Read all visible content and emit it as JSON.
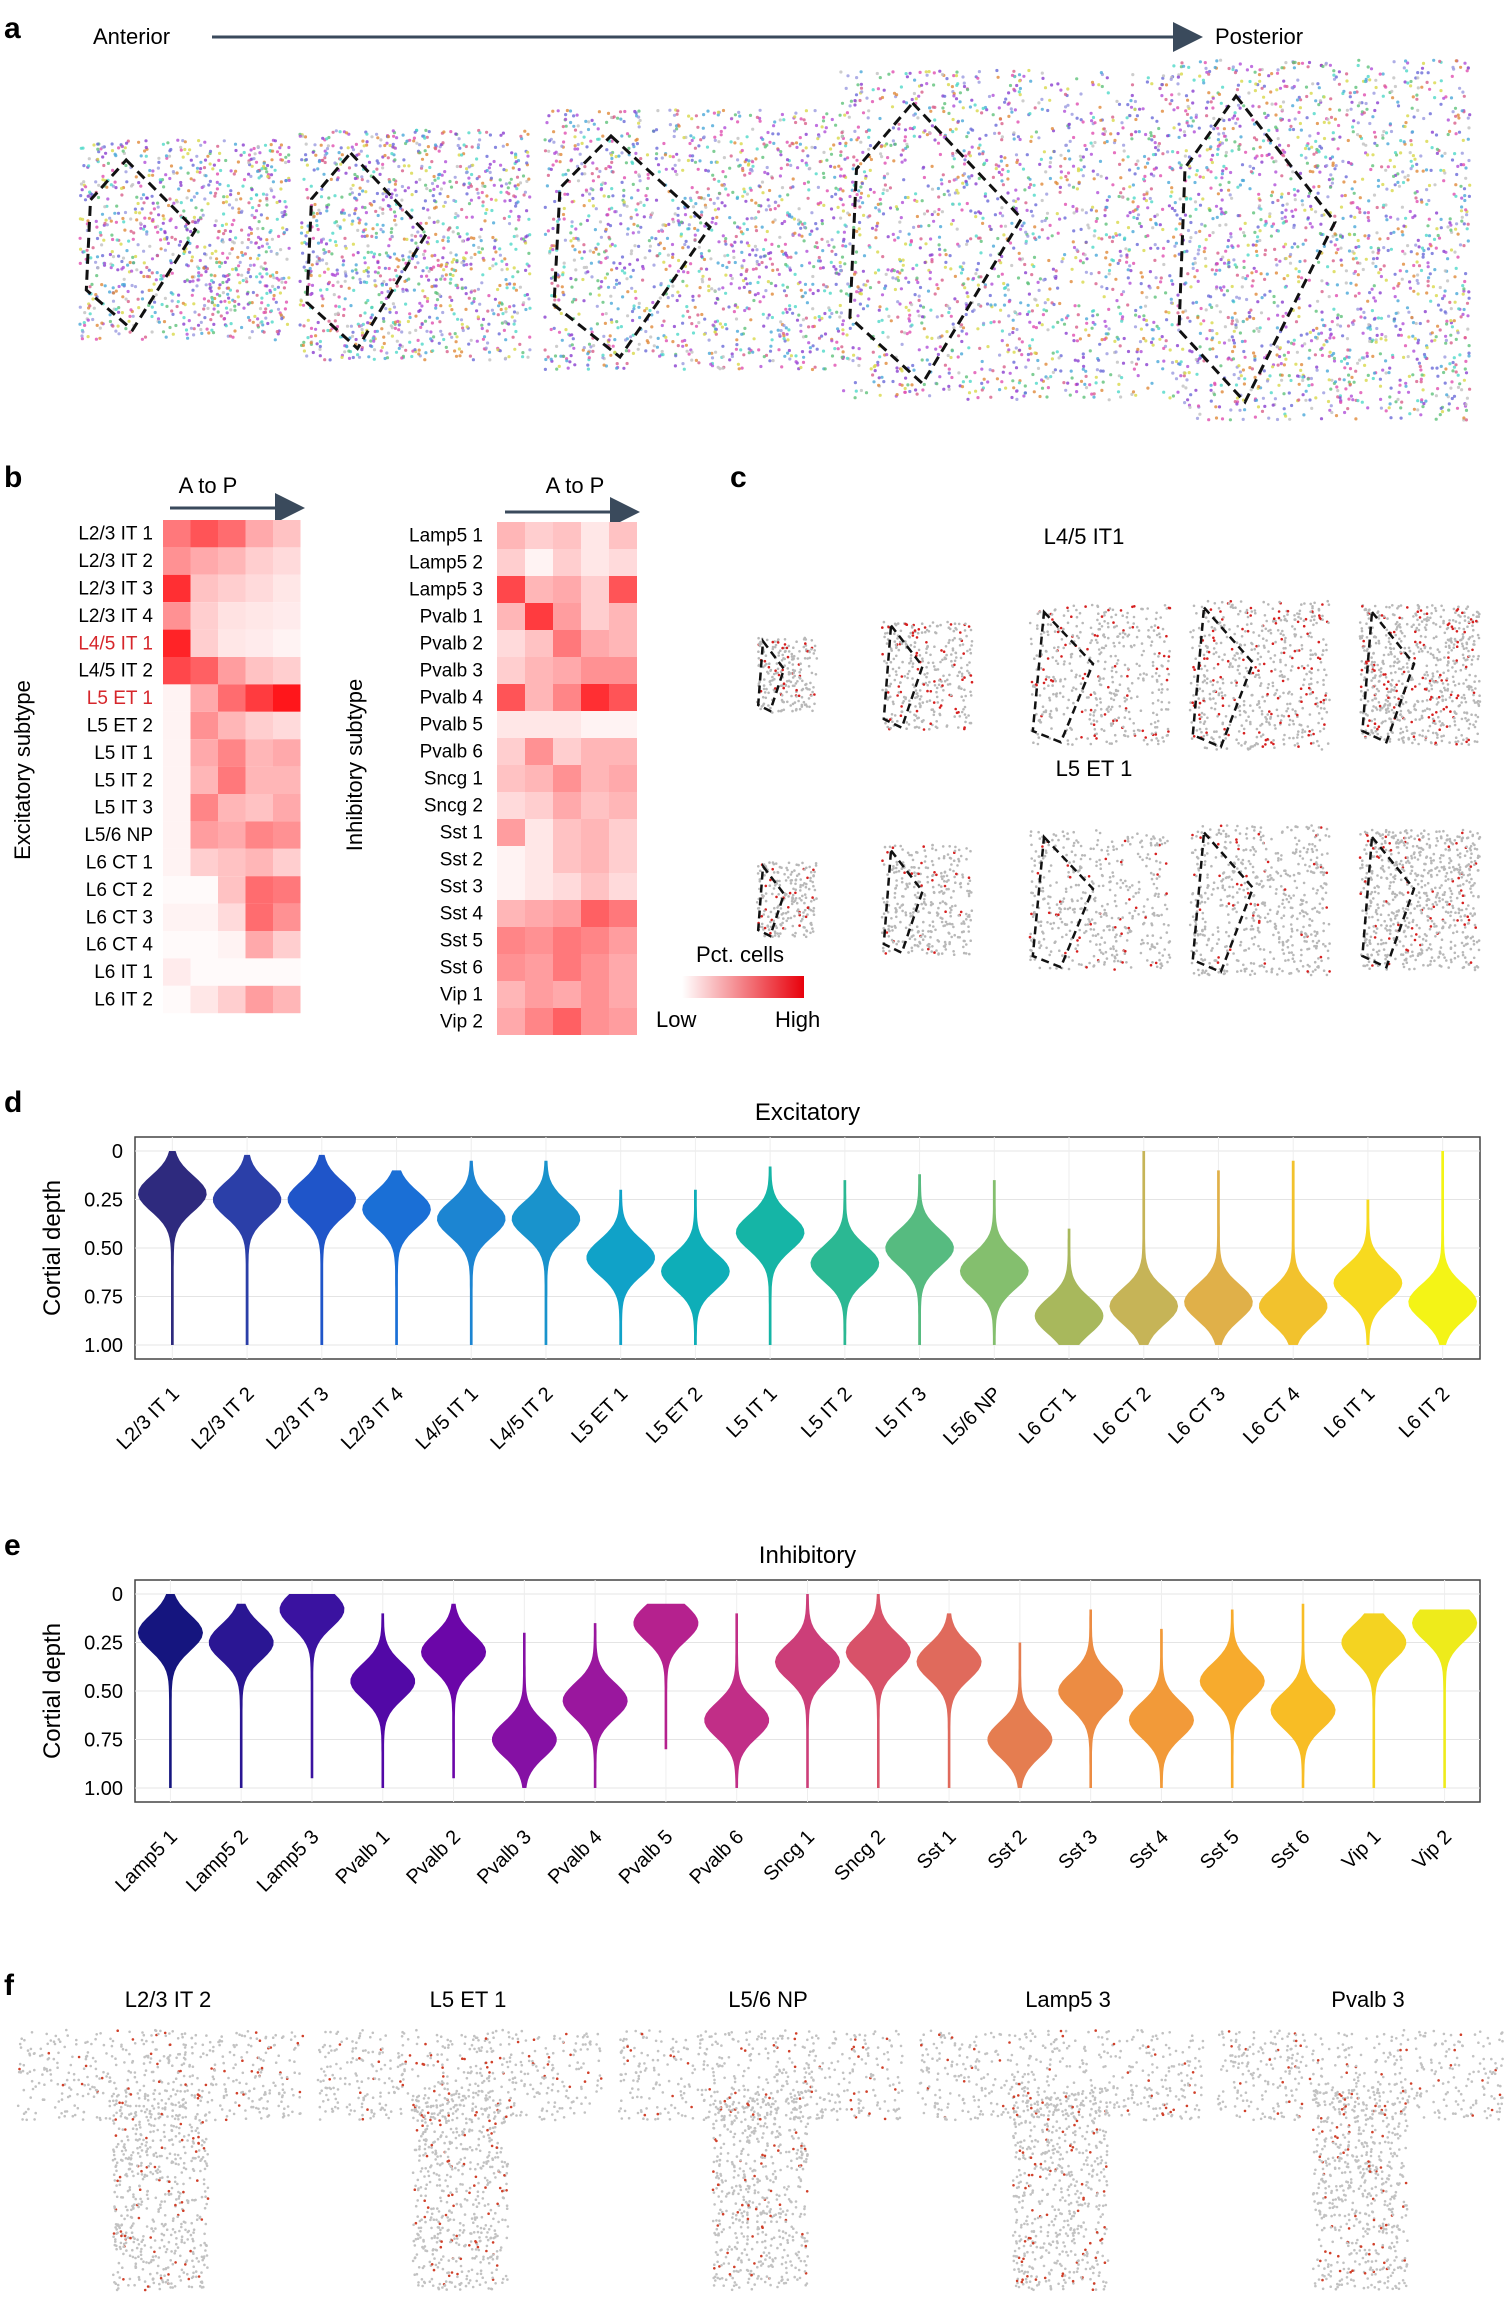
{
  "panel_a": {
    "letter": "a",
    "anterior_label": "Anterior",
    "posterior_label": "Posterior"
  },
  "panel_b": {
    "letter": "b",
    "exc_arrow_label": "A to P",
    "inh_arrow_label": "A to P",
    "exc_axis_title": "Excitatory subtype",
    "inh_axis_title": "Inhibitory subtype",
    "legend_title": "Pct. cells",
    "legend_low": "Low",
    "legend_high": "High",
    "highlight_color": "#d6262b",
    "excitatory_rows": [
      "L2/3 IT 1",
      "L2/3 IT 2",
      "L2/3 IT 3",
      "L2/3 IT 4",
      "L4/5 IT 1",
      "L4/5 IT 2",
      "L5 ET 1",
      "L5 ET 2",
      "L5 IT 1",
      "L5 IT 2",
      "L5 IT 3",
      "L5/6 NP",
      "L6 CT 1",
      "L6 CT 2",
      "L6 CT 3",
      "L6 CT 4",
      "L6 IT 1",
      "L6 IT 2"
    ],
    "excitatory_highlight": [
      4,
      6
    ],
    "excitatory_values": [
      [
        0.55,
        0.7,
        0.6,
        0.35,
        0.25
      ],
      [
        0.45,
        0.35,
        0.3,
        0.2,
        0.15
      ],
      [
        0.85,
        0.25,
        0.2,
        0.15,
        0.1
      ],
      [
        0.45,
        0.2,
        0.12,
        0.1,
        0.08
      ],
      [
        0.9,
        0.2,
        0.1,
        0.08,
        0.05
      ],
      [
        0.75,
        0.65,
        0.4,
        0.25,
        0.2
      ],
      [
        0.05,
        0.35,
        0.6,
        0.8,
        0.95
      ],
      [
        0.05,
        0.45,
        0.3,
        0.2,
        0.15
      ],
      [
        0.05,
        0.35,
        0.5,
        0.3,
        0.35
      ],
      [
        0.05,
        0.3,
        0.55,
        0.3,
        0.3
      ],
      [
        0.05,
        0.5,
        0.3,
        0.25,
        0.35
      ],
      [
        0.05,
        0.4,
        0.35,
        0.5,
        0.45
      ],
      [
        0.05,
        0.2,
        0.25,
        0.3,
        0.2
      ],
      [
        0.02,
        0.02,
        0.25,
        0.6,
        0.55
      ],
      [
        0.05,
        0.05,
        0.15,
        0.6,
        0.45
      ],
      [
        0.02,
        0.02,
        0.05,
        0.35,
        0.2
      ],
      [
        0.08,
        0.02,
        0.02,
        0.02,
        0.02
      ],
      [
        0.02,
        0.1,
        0.2,
        0.4,
        0.3
      ]
    ],
    "inhibitory_rows": [
      "Lamp5 1",
      "Lamp5 2",
      "Lamp5 3",
      "Pvalb 1",
      "Pvalb 2",
      "Pvalb 3",
      "Pvalb 4",
      "Pvalb 5",
      "Pvalb 6",
      "Sncg 1",
      "Sncg 2",
      "Sst 1",
      "Sst 2",
      "Sst 3",
      "Sst 4",
      "Sst 5",
      "Sst 6",
      "Vip 1",
      "Vip 2"
    ],
    "inhibitory_values": [
      [
        0.3,
        0.2,
        0.25,
        0.1,
        0.25
      ],
      [
        0.2,
        0.05,
        0.2,
        0.1,
        0.15
      ],
      [
        0.75,
        0.3,
        0.35,
        0.2,
        0.7
      ],
      [
        0.3,
        0.8,
        0.4,
        0.2,
        0.3
      ],
      [
        0.15,
        0.25,
        0.55,
        0.35,
        0.3
      ],
      [
        0.2,
        0.3,
        0.35,
        0.45,
        0.45
      ],
      [
        0.7,
        0.3,
        0.5,
        0.85,
        0.7
      ],
      [
        0.1,
        0.1,
        0.1,
        0.05,
        0.05
      ],
      [
        0.2,
        0.45,
        0.2,
        0.3,
        0.3
      ],
      [
        0.25,
        0.3,
        0.45,
        0.3,
        0.35
      ],
      [
        0.15,
        0.2,
        0.35,
        0.25,
        0.3
      ],
      [
        0.4,
        0.1,
        0.25,
        0.3,
        0.2
      ],
      [
        0.05,
        0.1,
        0.25,
        0.3,
        0.2
      ],
      [
        0.05,
        0.1,
        0.15,
        0.25,
        0.15
      ],
      [
        0.3,
        0.35,
        0.4,
        0.65,
        0.55
      ],
      [
        0.5,
        0.45,
        0.55,
        0.5,
        0.4
      ],
      [
        0.45,
        0.4,
        0.55,
        0.45,
        0.35
      ],
      [
        0.3,
        0.4,
        0.35,
        0.45,
        0.35
      ],
      [
        0.35,
        0.5,
        0.65,
        0.45,
        0.4
      ]
    ]
  },
  "panel_c": {
    "letter": "c",
    "row1_title": "L4/5 IT1",
    "row2_title": "L5 ET 1"
  },
  "panel_d": {
    "letter": "d"
  },
  "panel_e": {
    "letter": "e"
  },
  "panel_f": {
    "letter": "f",
    "titles": [
      "L2/3 IT 2",
      "L5 ET 1",
      "L5/6 NP",
      "Lamp5 3",
      "Pvalb 3"
    ]
  },
  "chart_data": [
    {
      "type": "violin",
      "title": "Excitatory",
      "ylabel": "Cortial depth",
      "ylim": [
        0,
        1
      ],
      "y_ticks": [
        "0",
        "0.25",
        "0.50",
        "0.75",
        "1.00"
      ],
      "categories": [
        "L2/3 IT 1",
        "L2/3 IT 2",
        "L2/3 IT 3",
        "L2/3 IT 4",
        "L4/5 IT 1",
        "L4/5 IT 2",
        "L5 ET 1",
        "L5 ET 2",
        "L5 IT 1",
        "L5 IT 2",
        "L5 IT 3",
        "L5/6 NP",
        "L6 CT 1",
        "L6 CT 2",
        "L6 CT 3",
        "L6 CT 4",
        "L6 IT 1",
        "L6 IT 2"
      ],
      "colors": [
        "#2e2a7e",
        "#2b3fa8",
        "#1f55c9",
        "#1a6fd6",
        "#1c85d2",
        "#1993cc",
        "#10a2c8",
        "#0eaeb8",
        "#15b5a6",
        "#2bb893",
        "#56bb80",
        "#84bf6e",
        "#a8b85c",
        "#c6b457",
        "#e0b049",
        "#f2c22d",
        "#f7da1f",
        "#f4f416"
      ],
      "min": [
        0.0,
        0.02,
        0.02,
        0.1,
        0.05,
        0.05,
        0.2,
        0.2,
        0.08,
        0.15,
        0.12,
        0.15,
        0.4,
        0.0,
        0.1,
        0.05,
        0.25,
        0.0
      ],
      "max": [
        1.0,
        1.0,
        1.0,
        1.0,
        1.0,
        1.0,
        1.0,
        1.0,
        1.0,
        1.0,
        1.0,
        1.0,
        1.0,
        1.0,
        1.0,
        1.0,
        1.0,
        1.0
      ],
      "mode": [
        0.22,
        0.25,
        0.25,
        0.3,
        0.35,
        0.35,
        0.55,
        0.62,
        0.42,
        0.58,
        0.5,
        0.62,
        0.85,
        0.8,
        0.78,
        0.8,
        0.68,
        0.78
      ]
    },
    {
      "type": "violin",
      "title": "Inhibitory",
      "ylabel": "Cortial depth",
      "ylim": [
        0,
        1
      ],
      "y_ticks": [
        "0",
        "0.25",
        "0.50",
        "0.75",
        "1.00"
      ],
      "categories": [
        "Lamp5 1",
        "Lamp5 2",
        "Lamp5 3",
        "Pvalb 1",
        "Pvalb 2",
        "Pvalb 3",
        "Pvalb 4",
        "Pvalb 5",
        "Pvalb 6",
        "Sncg 1",
        "Sncg 2",
        "Sst 1",
        "Sst 2",
        "Sst 3",
        "Sst 4",
        "Sst 5",
        "Sst 6",
        "Vip 1",
        "Vip 2"
      ],
      "colors": [
        "#15157f",
        "#2a1693",
        "#3a12a0",
        "#5208a6",
        "#6b06a8",
        "#8510a4",
        "#9a179e",
        "#b5218e",
        "#c12e87",
        "#cc3e79",
        "#d85269",
        "#e06a5c",
        "#e57d50",
        "#ec8c43",
        "#f29a39",
        "#f7ab2d",
        "#f8bd25",
        "#f4d321",
        "#eeeb1b"
      ],
      "min": [
        0.0,
        0.05,
        0.0,
        0.1,
        0.05,
        0.2,
        0.15,
        0.05,
        0.1,
        0.0,
        0.0,
        0.1,
        0.25,
        0.08,
        0.18,
        0.08,
        0.05,
        0.1,
        0.08
      ],
      "max": [
        1.0,
        1.0,
        0.95,
        1.0,
        0.95,
        1.0,
        1.0,
        0.8,
        1.0,
        1.0,
        1.0,
        1.0,
        1.0,
        1.0,
        1.0,
        1.0,
        1.0,
        1.0,
        1.0
      ],
      "mode": [
        0.2,
        0.25,
        0.08,
        0.45,
        0.3,
        0.75,
        0.55,
        0.15,
        0.65,
        0.35,
        0.3,
        0.35,
        0.75,
        0.5,
        0.65,
        0.45,
        0.6,
        0.25,
        0.15
      ]
    }
  ]
}
